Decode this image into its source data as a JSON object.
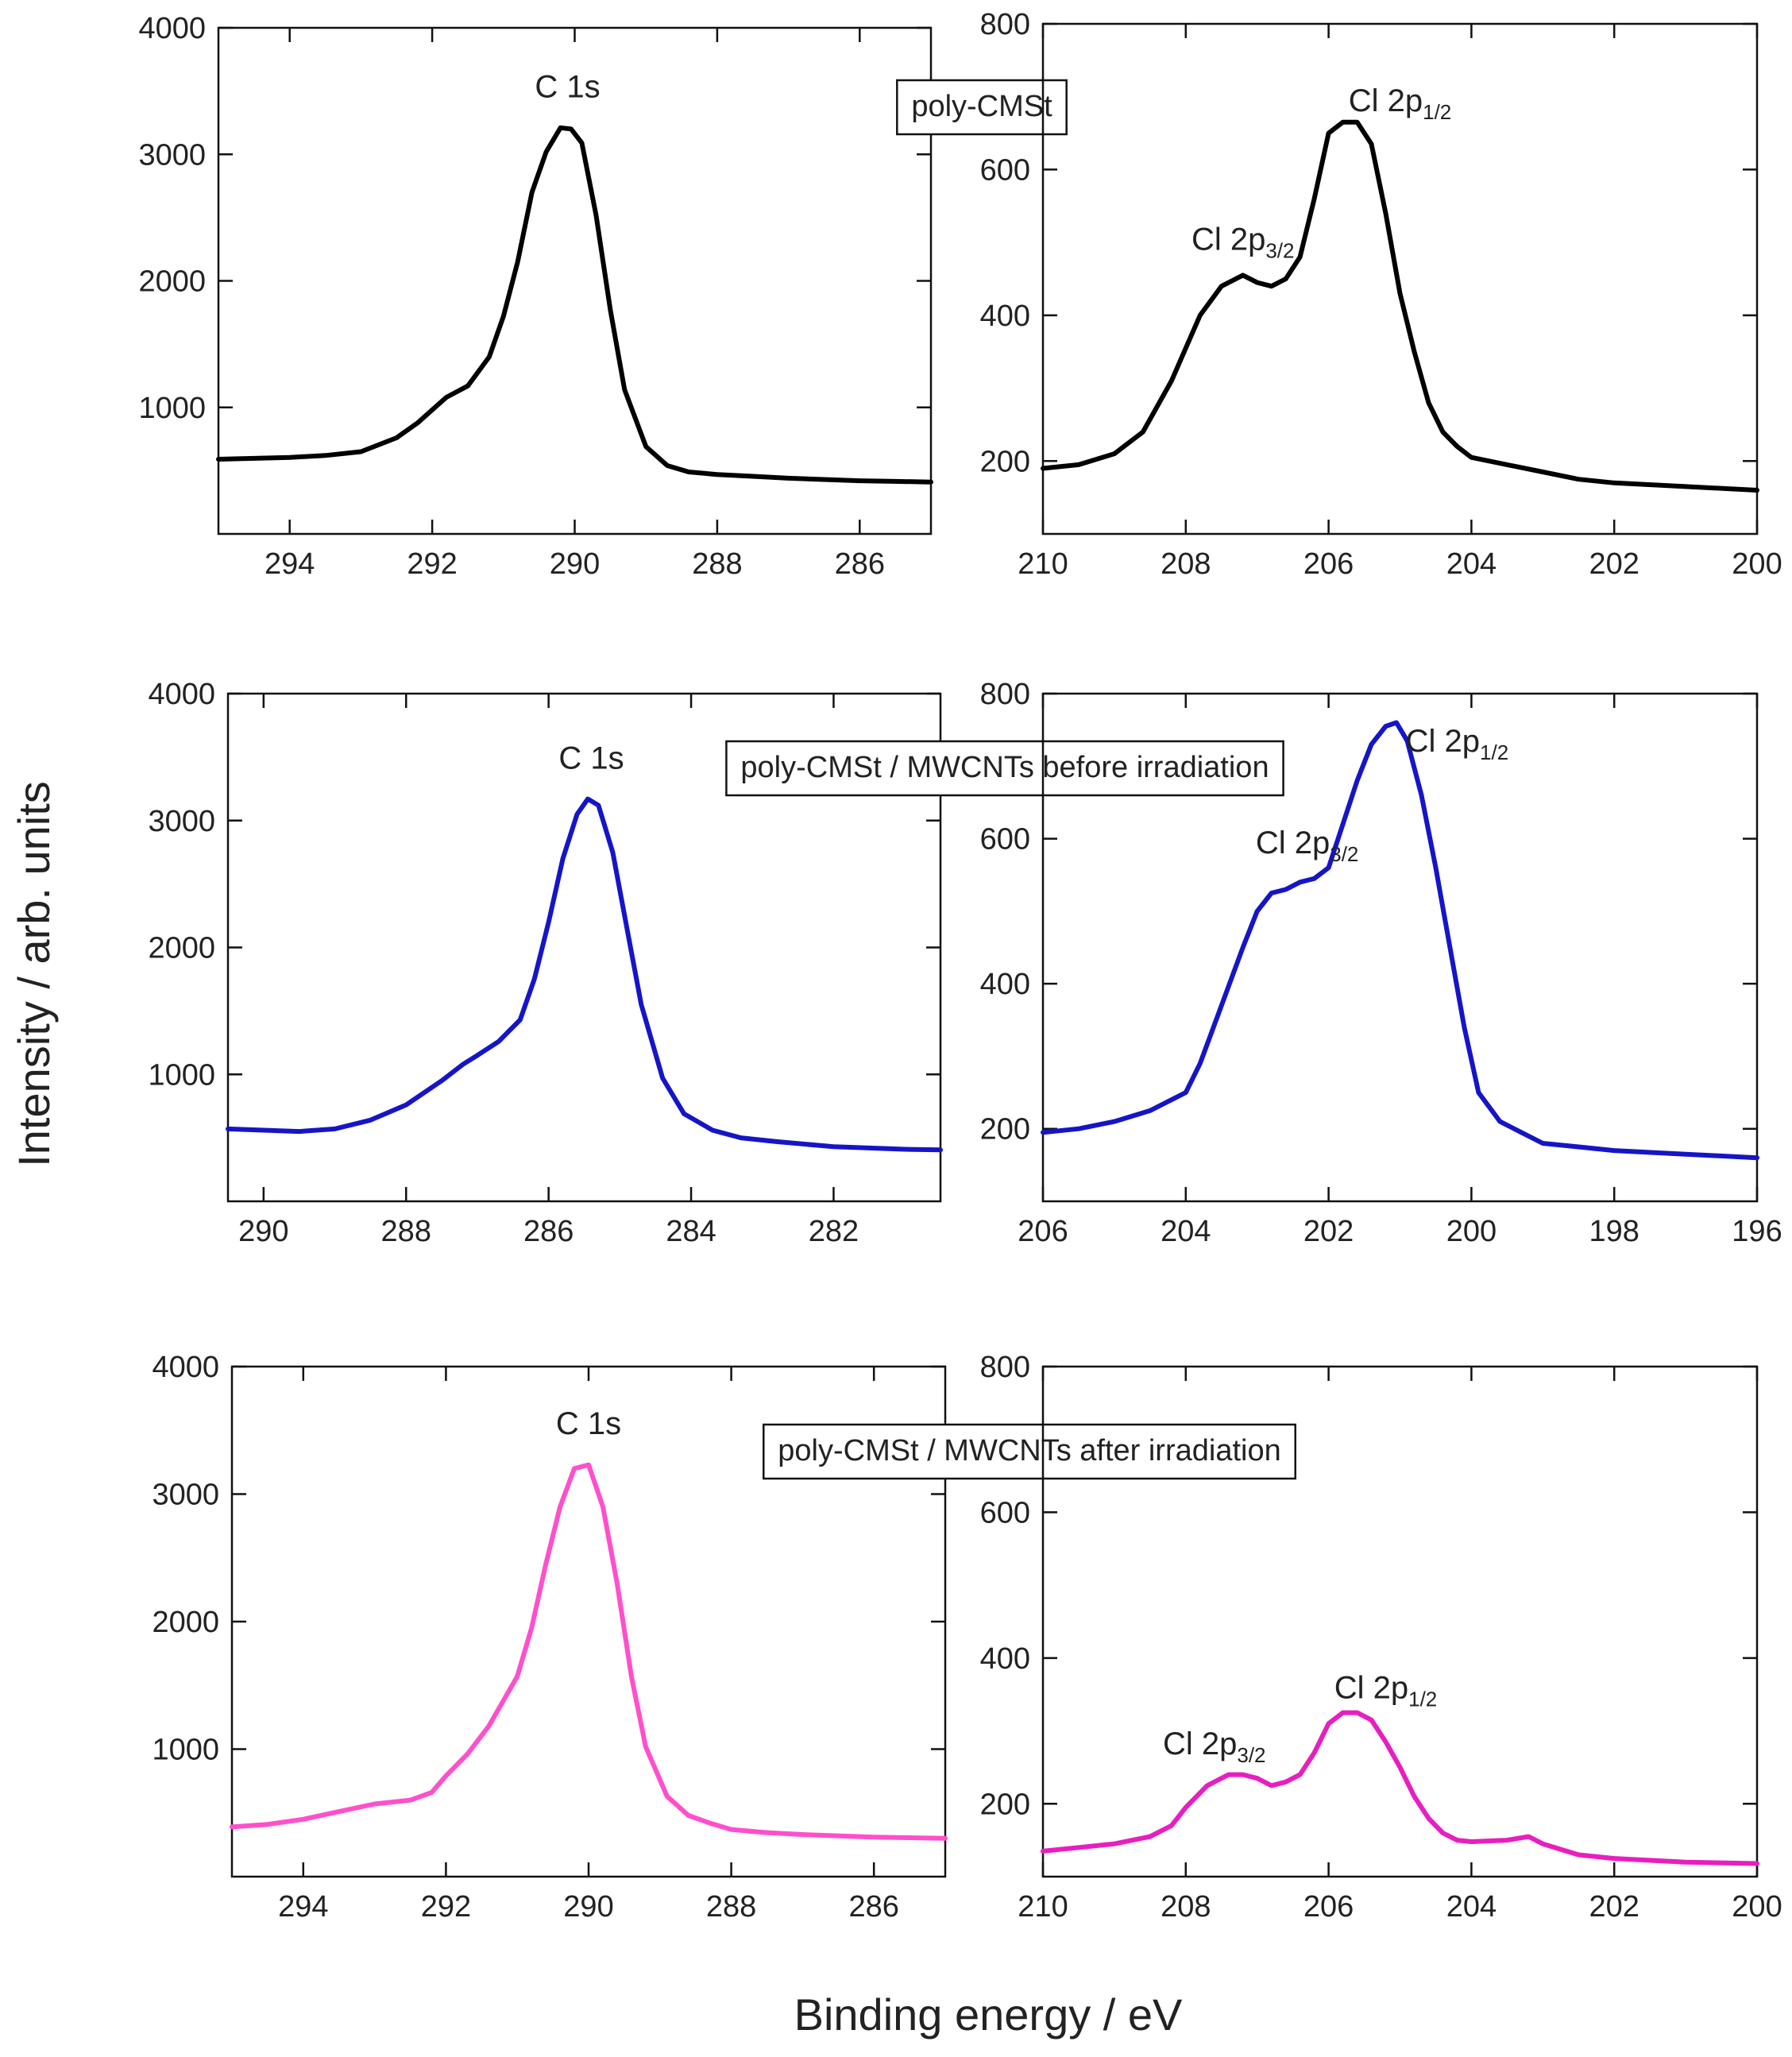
{
  "figure": {
    "ylabel": "Intensity / arb. units",
    "xlabel": "Binding energy / eV"
  },
  "chart_data": [
    {
      "type": "line",
      "row": 0,
      "panel": "C 1s",
      "sample_label": "poly-CMSt",
      "color": "#000000",
      "xlim": [
        295,
        285
      ],
      "ylim": [
        0,
        4000
      ],
      "xticks": [
        294,
        292,
        290,
        288,
        286
      ],
      "yticks": [
        1000,
        2000,
        3000,
        4000
      ],
      "annotations": [
        {
          "text": "C 1s",
          "x": 290.1,
          "y": 3450
        }
      ],
      "series": [
        {
          "x": [
            295.0,
            294.0,
            293.5,
            293.0,
            292.5,
            292.2,
            292.0,
            291.8,
            291.5,
            291.2,
            291.0,
            290.8,
            290.6,
            290.4,
            290.2,
            290.05,
            289.9,
            289.7,
            289.5,
            289.3,
            289.0,
            288.7,
            288.4,
            288.0,
            287.5,
            287.0,
            286.5,
            286.0,
            285.5,
            285.0
          ],
          "y": [
            590,
            605,
            620,
            650,
            760,
            880,
            980,
            1080,
            1170,
            1400,
            1720,
            2150,
            2700,
            3020,
            3210,
            3200,
            3090,
            2520,
            1770,
            1140,
            690,
            540,
            490,
            470,
            455,
            440,
            430,
            420,
            415,
            410
          ]
        }
      ]
    },
    {
      "type": "line",
      "row": 0,
      "panel": "Cl 2p",
      "color": "#000000",
      "xlim": [
        210,
        200
      ],
      "ylim": [
        100,
        800
      ],
      "xticks": [
        210,
        208,
        206,
        204,
        202,
        200
      ],
      "yticks": [
        200,
        400,
        600,
        800
      ],
      "annotations": [
        {
          "text": "Cl 2p",
          "sub": "3/2",
          "x": 207.2,
          "y": 490
        },
        {
          "text": "Cl 2p",
          "sub": "1/2",
          "x": 205.0,
          "y": 680
        }
      ],
      "series": [
        {
          "x": [
            210.0,
            209.5,
            209.0,
            208.6,
            208.2,
            207.8,
            207.5,
            207.2,
            207.0,
            206.8,
            206.6,
            206.4,
            206.2,
            206.0,
            205.8,
            205.6,
            205.4,
            205.2,
            205.0,
            204.8,
            204.6,
            204.4,
            204.2,
            204.0,
            203.5,
            203.0,
            202.5,
            202.0,
            201.0,
            200.0
          ],
          "y": [
            190,
            195,
            210,
            240,
            310,
            400,
            440,
            455,
            445,
            440,
            450,
            480,
            560,
            650,
            665,
            665,
            635,
            540,
            430,
            350,
            280,
            240,
            220,
            205,
            195,
            185,
            175,
            170,
            165,
            160
          ]
        }
      ]
    },
    {
      "type": "line",
      "row": 1,
      "panel": "C 1s",
      "sample_label": "poly-CMSt / MWCNTs before irradiation",
      "color": "#1515c8",
      "xlim": [
        290.5,
        280.5
      ],
      "ylim": [
        0,
        4000
      ],
      "xticks": [
        290,
        288,
        286,
        284,
        282
      ],
      "yticks": [
        1000,
        2000,
        3000,
        4000
      ],
      "annotations": [
        {
          "text": "C 1s",
          "x": 285.4,
          "y": 3410
        }
      ],
      "series": [
        {
          "x": [
            290.5,
            289.5,
            289.0,
            288.5,
            288.0,
            287.5,
            287.2,
            287.0,
            286.7,
            286.4,
            286.2,
            286.0,
            285.8,
            285.6,
            285.45,
            285.3,
            285.1,
            284.9,
            284.7,
            284.4,
            284.1,
            283.7,
            283.3,
            282.8,
            282.0,
            281.0,
            280.5
          ],
          "y": [
            570,
            550,
            570,
            640,
            760,
            950,
            1080,
            1150,
            1260,
            1430,
            1750,
            2200,
            2700,
            3050,
            3170,
            3120,
            2750,
            2150,
            1550,
            970,
            690,
            560,
            500,
            470,
            430,
            410,
            405
          ]
        }
      ]
    },
    {
      "type": "line",
      "row": 1,
      "panel": "Cl 2p",
      "color": "#1515c8",
      "xlim": [
        206,
        196
      ],
      "ylim": [
        100,
        800
      ],
      "xticks": [
        206,
        204,
        202,
        200,
        198,
        196
      ],
      "yticks": [
        200,
        400,
        600,
        800
      ],
      "annotations": [
        {
          "text": "Cl 2p",
          "sub": "3/2",
          "x": 202.3,
          "y": 580
        },
        {
          "text": "Cl 2p",
          "sub": "1/2",
          "x": 200.2,
          "y": 720
        }
      ],
      "series": [
        {
          "x": [
            206.0,
            205.5,
            205.0,
            204.5,
            204.0,
            203.8,
            203.5,
            203.2,
            203.0,
            202.8,
            202.6,
            202.4,
            202.2,
            202.0,
            201.8,
            201.6,
            201.4,
            201.2,
            201.05,
            200.9,
            200.7,
            200.5,
            200.3,
            200.1,
            199.9,
            199.6,
            199.3,
            199.0,
            198.5,
            198.0,
            197.0,
            196.0
          ],
          "y": [
            195,
            200,
            210,
            225,
            250,
            290,
            370,
            450,
            500,
            525,
            530,
            540,
            545,
            560,
            620,
            680,
            730,
            755,
            760,
            735,
            660,
            560,
            450,
            340,
            250,
            210,
            195,
            180,
            175,
            170,
            165,
            160
          ]
        }
      ]
    },
    {
      "type": "line",
      "row": 2,
      "panel": "C 1s",
      "sample_label": "poly-CMSt / MWCNTs after irradiation",
      "color": "#ff4fcc",
      "xlim": [
        295,
        285
      ],
      "ylim": [
        0,
        4000
      ],
      "xticks": [
        294,
        292,
        290,
        288,
        286
      ],
      "yticks": [
        1000,
        2000,
        3000,
        4000
      ],
      "annotations": [
        {
          "text": "C 1s",
          "x": 290.0,
          "y": 3470
        }
      ],
      "series": [
        {
          "x": [
            295.0,
            294.5,
            294.0,
            293.5,
            293.0,
            292.5,
            292.2,
            292.0,
            291.7,
            291.4,
            291.0,
            290.8,
            290.6,
            290.4,
            290.2,
            290.0,
            289.8,
            289.6,
            289.4,
            289.2,
            288.9,
            288.6,
            288.3,
            288.0,
            287.5,
            287.0,
            286.0,
            285.0
          ],
          "y": [
            390,
            410,
            450,
            510,
            570,
            600,
            660,
            790,
            960,
            1180,
            1570,
            1950,
            2450,
            2900,
            3200,
            3230,
            2900,
            2300,
            1570,
            1020,
            630,
            480,
            420,
            370,
            345,
            330,
            310,
            300
          ]
        }
      ]
    },
    {
      "type": "line",
      "row": 2,
      "panel": "Cl 2p",
      "color": "#e81ec0",
      "xlim": [
        210,
        200
      ],
      "ylim": [
        100,
        800
      ],
      "xticks": [
        210,
        208,
        206,
        204,
        202,
        200
      ],
      "yticks": [
        200,
        400,
        600,
        800
      ],
      "annotations": [
        {
          "text": "Cl 2p",
          "sub": "3/2",
          "x": 207.6,
          "y": 268
        },
        {
          "text": "Cl 2p",
          "sub": "1/2",
          "x": 205.2,
          "y": 345
        }
      ],
      "series": [
        {
          "x": [
            210.0,
            209.5,
            209.0,
            208.5,
            208.2,
            208.0,
            207.7,
            207.4,
            207.2,
            207.0,
            206.8,
            206.6,
            206.4,
            206.2,
            206.0,
            205.8,
            205.6,
            205.4,
            205.2,
            205.0,
            204.8,
            204.6,
            204.4,
            204.2,
            204.0,
            203.5,
            203.2,
            203.0,
            202.5,
            202.0,
            201.0,
            200.0
          ],
          "y": [
            135,
            140,
            145,
            155,
            170,
            195,
            225,
            240,
            240,
            235,
            225,
            230,
            240,
            270,
            310,
            325,
            325,
            315,
            285,
            250,
            210,
            180,
            160,
            150,
            148,
            150,
            155,
            145,
            130,
            125,
            120,
            118
          ]
        }
      ]
    }
  ]
}
